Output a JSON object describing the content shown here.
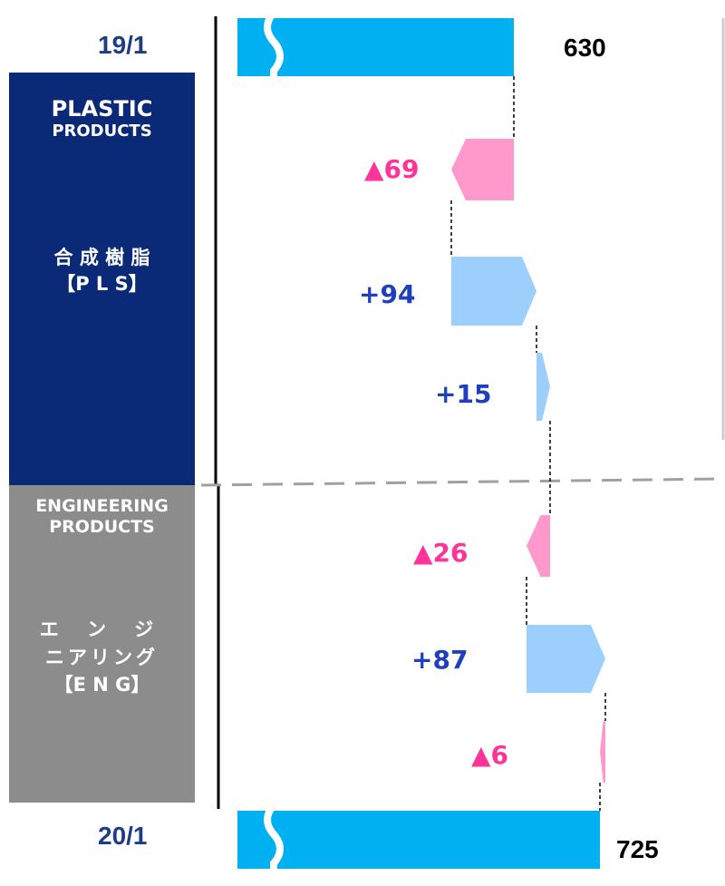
{
  "chart_data": {
    "type": "waterfall",
    "start": {
      "label": "19/1",
      "value": 630
    },
    "end": {
      "label": "20/1",
      "value": 725
    },
    "steps": [
      {
        "segment": "PLS",
        "text": "▲69",
        "value": -69
      },
      {
        "segment": "PLS",
        "text": "+94",
        "value": 94
      },
      {
        "segment": "PLS",
        "text": "+15",
        "value": 15
      },
      {
        "segment": "ENG",
        "text": "▲26",
        "value": -26
      },
      {
        "segment": "ENG",
        "text": "+87",
        "value": 87
      },
      {
        "segment": "ENG",
        "text": "▲6",
        "value": -6
      }
    ],
    "colors": {
      "total": "#00b0f0",
      "increase": "#9dcffc",
      "decrease": "#ff99cc",
      "increase_label": "#1f3fbf",
      "decrease_label": "#ff3399",
      "total_label": "#000000",
      "date_label": "#1f3c88"
    }
  },
  "segments": {
    "pls": {
      "en_line1": "PLASTIC",
      "en_line2": "PRODUCTS",
      "jp_line1": "合 成 樹 脂",
      "jp_line2": "【P L S】",
      "color": "#0a2a78"
    },
    "eng": {
      "en_line1": "ENGINEERING",
      "en_line2": "PRODUCTS",
      "jp_line1": "エ ン ジ",
      "jp_line2": "ニアリング",
      "jp_line3": "【E N G】",
      "color": "#8c8c8c"
    }
  }
}
